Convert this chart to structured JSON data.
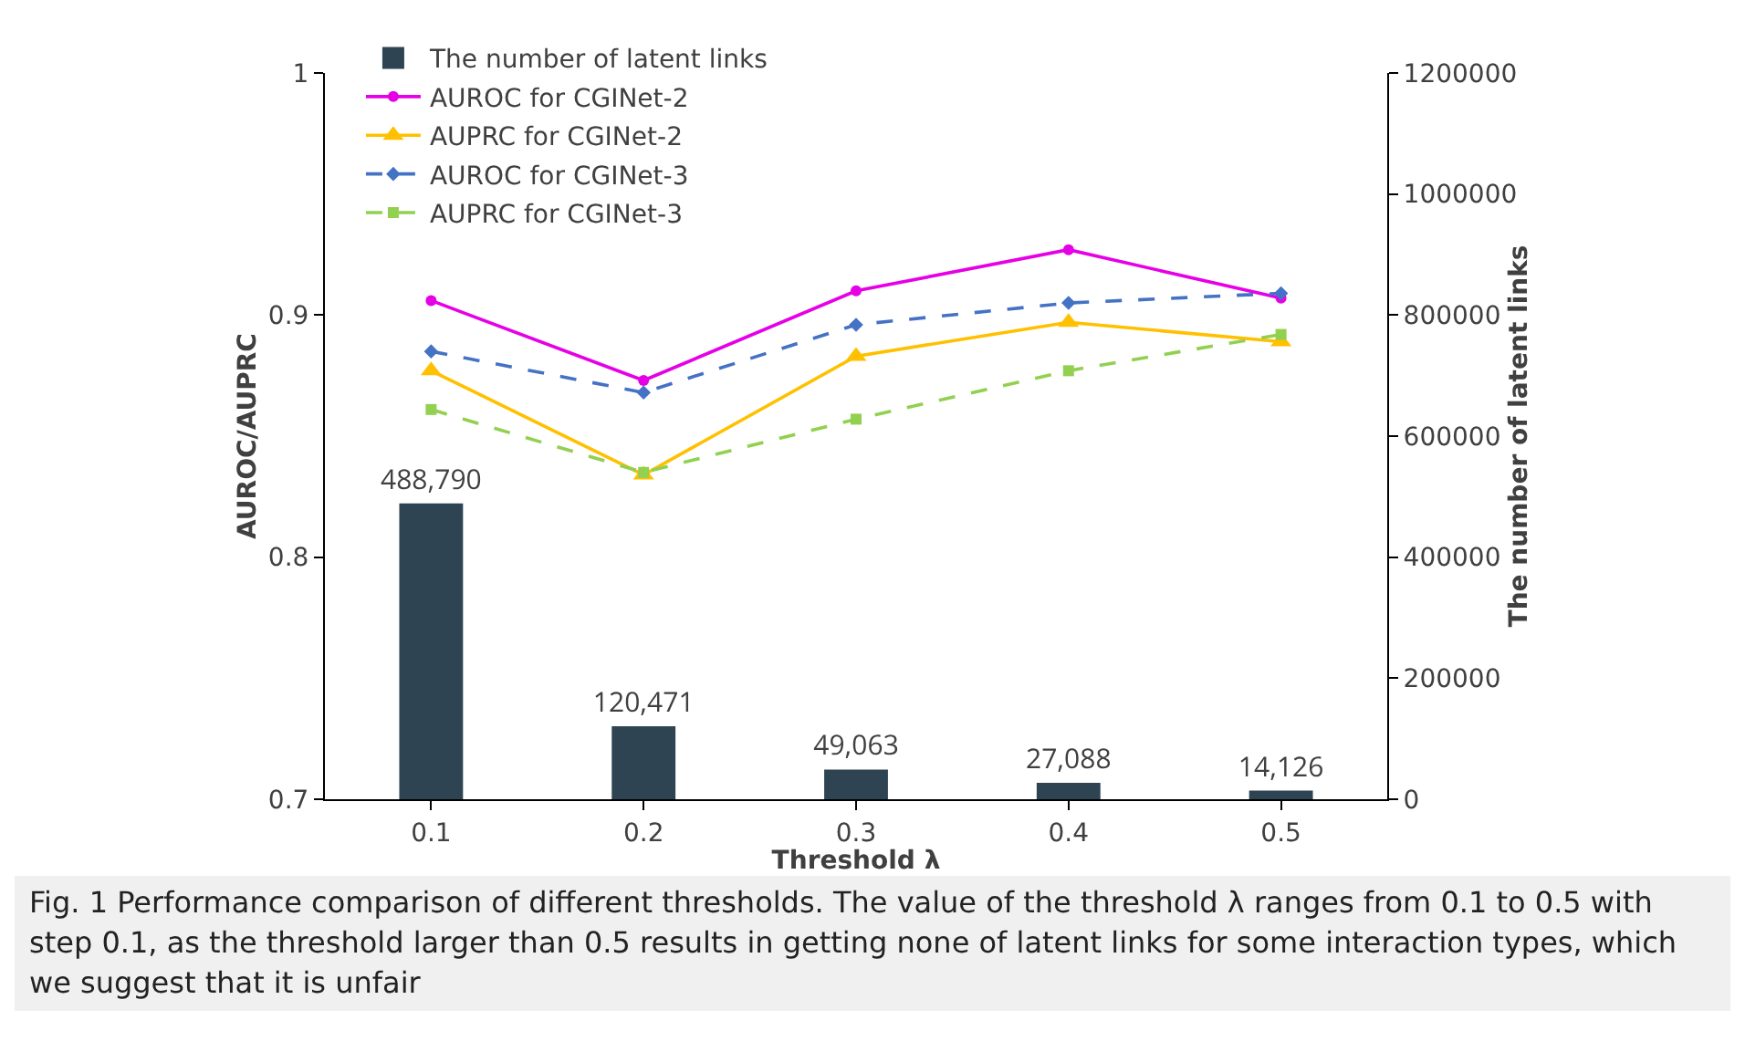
{
  "chart_data": {
    "type": "line",
    "categories": [
      "0.1",
      "0.2",
      "0.3",
      "0.4",
      "0.5"
    ],
    "xlabel": "Threshold λ",
    "ylabel": "AUROC/AUPRC",
    "y2label": "The number of latent links",
    "ylim": [
      0.7,
      1
    ],
    "yticks": [
      0.7,
      0.8,
      0.9,
      1
    ],
    "y2lim": [
      0,
      1200000
    ],
    "y2ticks": [
      0,
      200000,
      400000,
      600000,
      800000,
      1000000,
      1200000
    ],
    "grid": false,
    "legend": "top left",
    "series": [
      {
        "name": "The number of latent links",
        "type": "bar",
        "axis": "y2",
        "color": "#2e4453",
        "values": [
          488790,
          120471,
          49063,
          27088,
          14126
        ],
        "value_labels": [
          "488,790",
          "120,471",
          "49,063",
          "27,088",
          "14,126"
        ]
      },
      {
        "name": "AUROC for CGINet-2",
        "color": "#e600e6",
        "marker": "circle",
        "line_style": "solid",
        "values": [
          0.906,
          0.873,
          0.91,
          0.927,
          0.907
        ]
      },
      {
        "name": "AUPRC for CGINet-2",
        "color": "#ffc000",
        "marker": "triangle",
        "line_style": "solid",
        "values": [
          0.877,
          0.834,
          0.883,
          0.897,
          0.889
        ]
      },
      {
        "name": "AUROC for CGINet-3",
        "color": "#4472c4",
        "marker": "diamond",
        "line_style": "dashed",
        "values": [
          0.885,
          0.868,
          0.896,
          0.905,
          0.909
        ]
      },
      {
        "name": "AUPRC for CGINet-3",
        "color": "#92d050",
        "marker": "square",
        "line_style": "dashed",
        "values": [
          0.861,
          0.835,
          0.857,
          0.877,
          0.892
        ]
      }
    ],
    "annotations": [
      "Fig. 1  Performance comparison of different thresholds. The value of the threshold λ ranges from 0.1 to 0.5 with step 0.1, as the threshold larger than 0.5 results in getting none of latent links for some interaction types, which we suggest that it is unfair"
    ]
  }
}
